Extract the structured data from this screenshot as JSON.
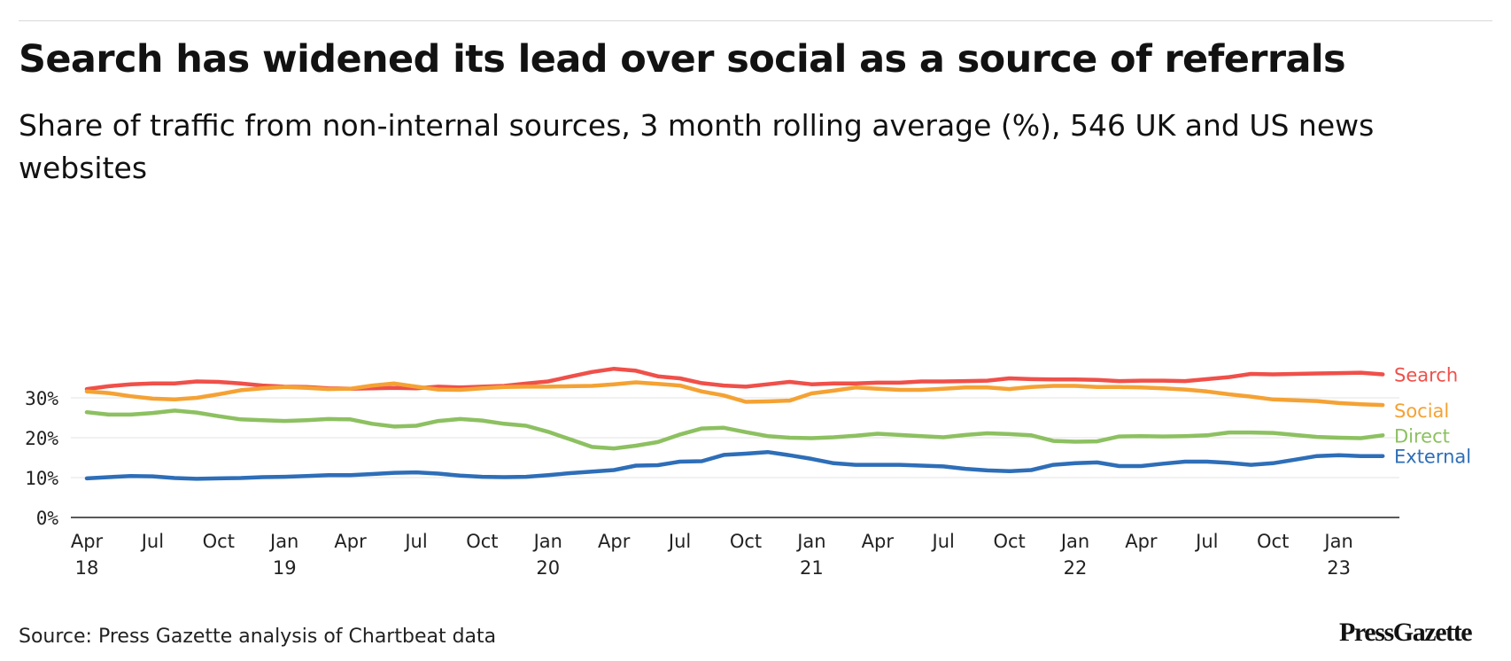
{
  "chart_data": {
    "type": "line",
    "title": "Search has widened its lead over social as a source of referrals",
    "subtitle": "Share of traffic from non-internal sources, 3 month rolling average (%), 546 UK and US news websites",
    "xlabel": "",
    "ylabel": "",
    "ylim": [
      0,
      40
    ],
    "yticks": [
      0,
      10,
      20,
      30
    ],
    "ytick_labels": [
      "0%",
      "10%",
      "20%",
      "30%"
    ],
    "grid": true,
    "legend": "direct labels at line ends (right)",
    "x": [
      "2018-04",
      "2018-05",
      "2018-06",
      "2018-07",
      "2018-08",
      "2018-09",
      "2018-10",
      "2018-11",
      "2018-12",
      "2019-01",
      "2019-02",
      "2019-03",
      "2019-04",
      "2019-05",
      "2019-06",
      "2019-07",
      "2019-08",
      "2019-09",
      "2019-10",
      "2019-11",
      "2019-12",
      "2020-01",
      "2020-02",
      "2020-03",
      "2020-04",
      "2020-05",
      "2020-06",
      "2020-07",
      "2020-08",
      "2020-09",
      "2020-10",
      "2020-11",
      "2020-12",
      "2021-01",
      "2021-02",
      "2021-03",
      "2021-04",
      "2021-05",
      "2021-06",
      "2021-07",
      "2021-08",
      "2021-09",
      "2021-10",
      "2021-11",
      "2021-12",
      "2022-01",
      "2022-02",
      "2022-03",
      "2022-04",
      "2022-05",
      "2022-06",
      "2022-07",
      "2022-08",
      "2022-09",
      "2022-10",
      "2022-11",
      "2022-12",
      "2023-01",
      "2023-02",
      "2023-03"
    ],
    "x_tick_labels": [
      {
        "x": "2018-04",
        "month": "Apr",
        "year": "18"
      },
      {
        "x": "2018-07",
        "month": "Jul",
        "year": ""
      },
      {
        "x": "2018-10",
        "month": "Oct",
        "year": ""
      },
      {
        "x": "2019-01",
        "month": "Jan",
        "year": "19"
      },
      {
        "x": "2019-04",
        "month": "Apr",
        "year": ""
      },
      {
        "x": "2019-07",
        "month": "Jul",
        "year": ""
      },
      {
        "x": "2019-10",
        "month": "Oct",
        "year": ""
      },
      {
        "x": "2020-01",
        "month": "Jan",
        "year": "20"
      },
      {
        "x": "2020-04",
        "month": "Apr",
        "year": ""
      },
      {
        "x": "2020-07",
        "month": "Jul",
        "year": ""
      },
      {
        "x": "2020-10",
        "month": "Oct",
        "year": ""
      },
      {
        "x": "2021-01",
        "month": "Jan",
        "year": "21"
      },
      {
        "x": "2021-04",
        "month": "Apr",
        "year": ""
      },
      {
        "x": "2021-07",
        "month": "Jul",
        "year": ""
      },
      {
        "x": "2021-10",
        "month": "Oct",
        "year": ""
      },
      {
        "x": "2022-01",
        "month": "Jan",
        "year": "22"
      },
      {
        "x": "2022-04",
        "month": "Apr",
        "year": ""
      },
      {
        "x": "2022-07",
        "month": "Jul",
        "year": ""
      },
      {
        "x": "2022-10",
        "month": "Oct",
        "year": ""
      },
      {
        "x": "2023-01",
        "month": "Jan",
        "year": "23"
      }
    ],
    "series": [
      {
        "name": "Search",
        "color": "#f0504a",
        "values": [
          32.2,
          32.9,
          33.4,
          33.6,
          33.6,
          34.1,
          34.0,
          33.6,
          33.1,
          32.8,
          32.7,
          32.4,
          32.3,
          32.4,
          32.5,
          32.4,
          32.8,
          32.6,
          32.8,
          33.0,
          33.6,
          34.1,
          35.3,
          36.5,
          37.3,
          36.8,
          35.4,
          34.9,
          33.7,
          33.1,
          32.8,
          33.4,
          34.0,
          33.4,
          33.6,
          33.6,
          33.8,
          33.8,
          34.1,
          34.1,
          34.2,
          34.3,
          34.9,
          34.7,
          34.6,
          34.6,
          34.5,
          34.2,
          34.3,
          34.3,
          34.2,
          34.7,
          35.2,
          36.0,
          35.9,
          36.0,
          36.1,
          36.2,
          36.3,
          35.9
        ]
      },
      {
        "name": "Social",
        "color": "#f5a234",
        "values": [
          31.6,
          31.2,
          30.4,
          29.8,
          29.6,
          30.0,
          30.9,
          31.9,
          32.4,
          32.7,
          32.5,
          32.2,
          32.3,
          33.1,
          33.6,
          32.8,
          32.1,
          32.0,
          32.4,
          32.7,
          32.8,
          32.8,
          32.9,
          33.0,
          33.4,
          33.9,
          33.5,
          33.1,
          31.6,
          30.6,
          29.0,
          29.1,
          29.3,
          31.1,
          31.8,
          32.6,
          32.3,
          32.0,
          32.0,
          32.3,
          32.6,
          32.6,
          32.2,
          32.7,
          33.0,
          33.0,
          32.7,
          32.7,
          32.6,
          32.4,
          32.1,
          31.6,
          30.9,
          30.3,
          29.6,
          29.4,
          29.2,
          28.7,
          28.4,
          28.2
        ]
      },
      {
        "name": "Direct",
        "color": "#8cc060",
        "values": [
          26.4,
          25.8,
          25.8,
          26.2,
          26.8,
          26.3,
          25.4,
          24.6,
          24.4,
          24.2,
          24.4,
          24.7,
          24.6,
          23.5,
          22.8,
          23.0,
          24.2,
          24.7,
          24.3,
          23.5,
          23.0,
          21.5,
          19.6,
          17.7,
          17.3,
          18.0,
          18.9,
          20.8,
          22.3,
          22.5,
          21.4,
          20.4,
          20.0,
          19.9,
          20.1,
          20.5,
          21.0,
          20.7,
          20.4,
          20.1,
          20.7,
          21.1,
          20.9,
          20.6,
          19.2,
          19.0,
          19.1,
          20.3,
          20.4,
          20.3,
          20.4,
          20.6,
          21.3,
          21.3,
          21.2,
          20.7,
          20.2,
          20.0,
          19.9,
          20.6
        ]
      },
      {
        "name": "External",
        "color": "#2e6eb8",
        "values": [
          9.8,
          10.1,
          10.4,
          10.3,
          9.9,
          9.7,
          9.8,
          9.9,
          10.1,
          10.2,
          10.4,
          10.6,
          10.6,
          10.9,
          11.2,
          11.3,
          11.0,
          10.5,
          10.2,
          10.1,
          10.2,
          10.6,
          11.1,
          11.5,
          11.9,
          13.0,
          13.1,
          14.0,
          14.1,
          15.7,
          16.0,
          16.4,
          15.6,
          14.7,
          13.6,
          13.2,
          13.2,
          13.2,
          13.0,
          12.8,
          12.2,
          11.8,
          11.6,
          11.9,
          13.2,
          13.6,
          13.8,
          12.9,
          12.9,
          13.5,
          14.0,
          14.0,
          13.7,
          13.2,
          13.6,
          14.5,
          15.4,
          15.6,
          15.4,
          15.4
        ]
      }
    ]
  },
  "source": "Source: Press Gazette analysis of Chartbeat data",
  "brand": "PressGazette"
}
